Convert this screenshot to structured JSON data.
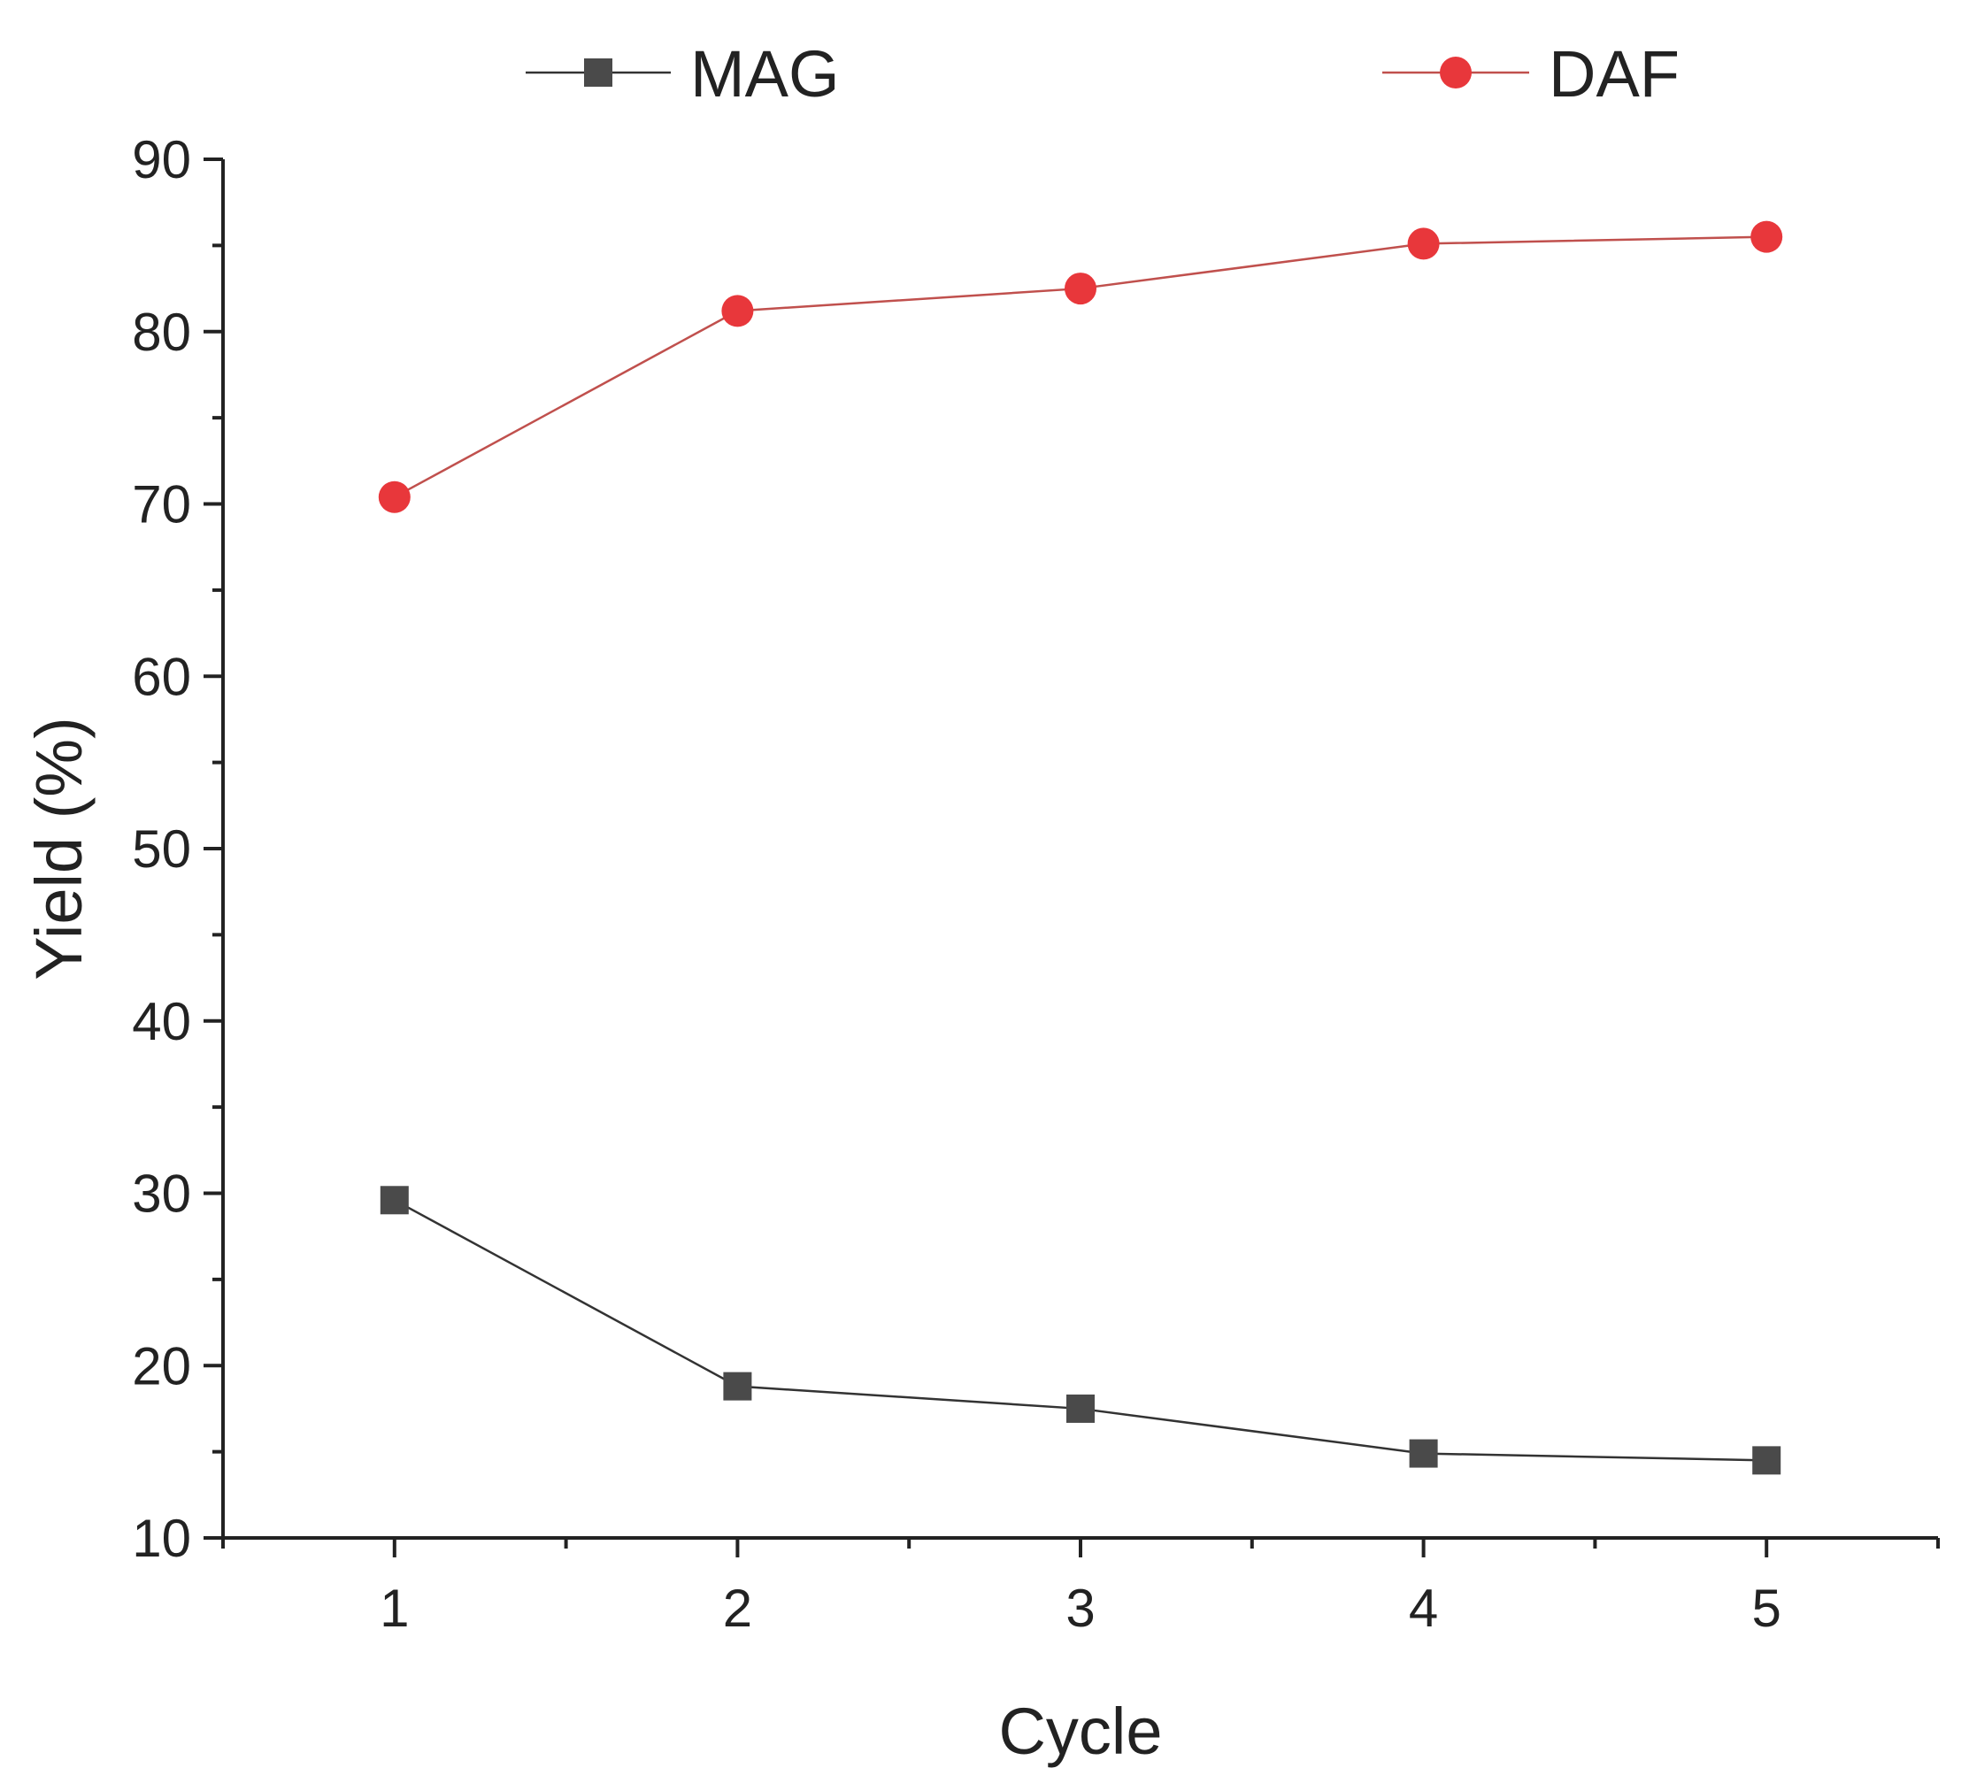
{
  "chart_data": {
    "type": "line",
    "title": "",
    "xlabel": "Cycle",
    "ylabel": "Yield (%)",
    "x": [
      1,
      2,
      3,
      4,
      5
    ],
    "xlim": [
      0.5,
      5.5
    ],
    "ylim": [
      10,
      90
    ],
    "xticks": [
      "1",
      "2",
      "3",
      "4",
      "5"
    ],
    "yticks": [
      "10",
      "20",
      "30",
      "40",
      "50",
      "60",
      "70",
      "80",
      "90"
    ],
    "grid": false,
    "legend_position": "top",
    "series": [
      {
        "name": "MAG",
        "values": [
          29.6,
          18.8,
          17.5,
          14.9,
          14.5
        ],
        "marker": "square",
        "color": "#4a4a4a",
        "line_color": "#333333"
      },
      {
        "name": "DAF",
        "values": [
          70.4,
          81.2,
          82.5,
          85.1,
          85.5
        ],
        "marker": "circle",
        "color": "#e8373b",
        "line_color": "#c0504d"
      }
    ]
  }
}
